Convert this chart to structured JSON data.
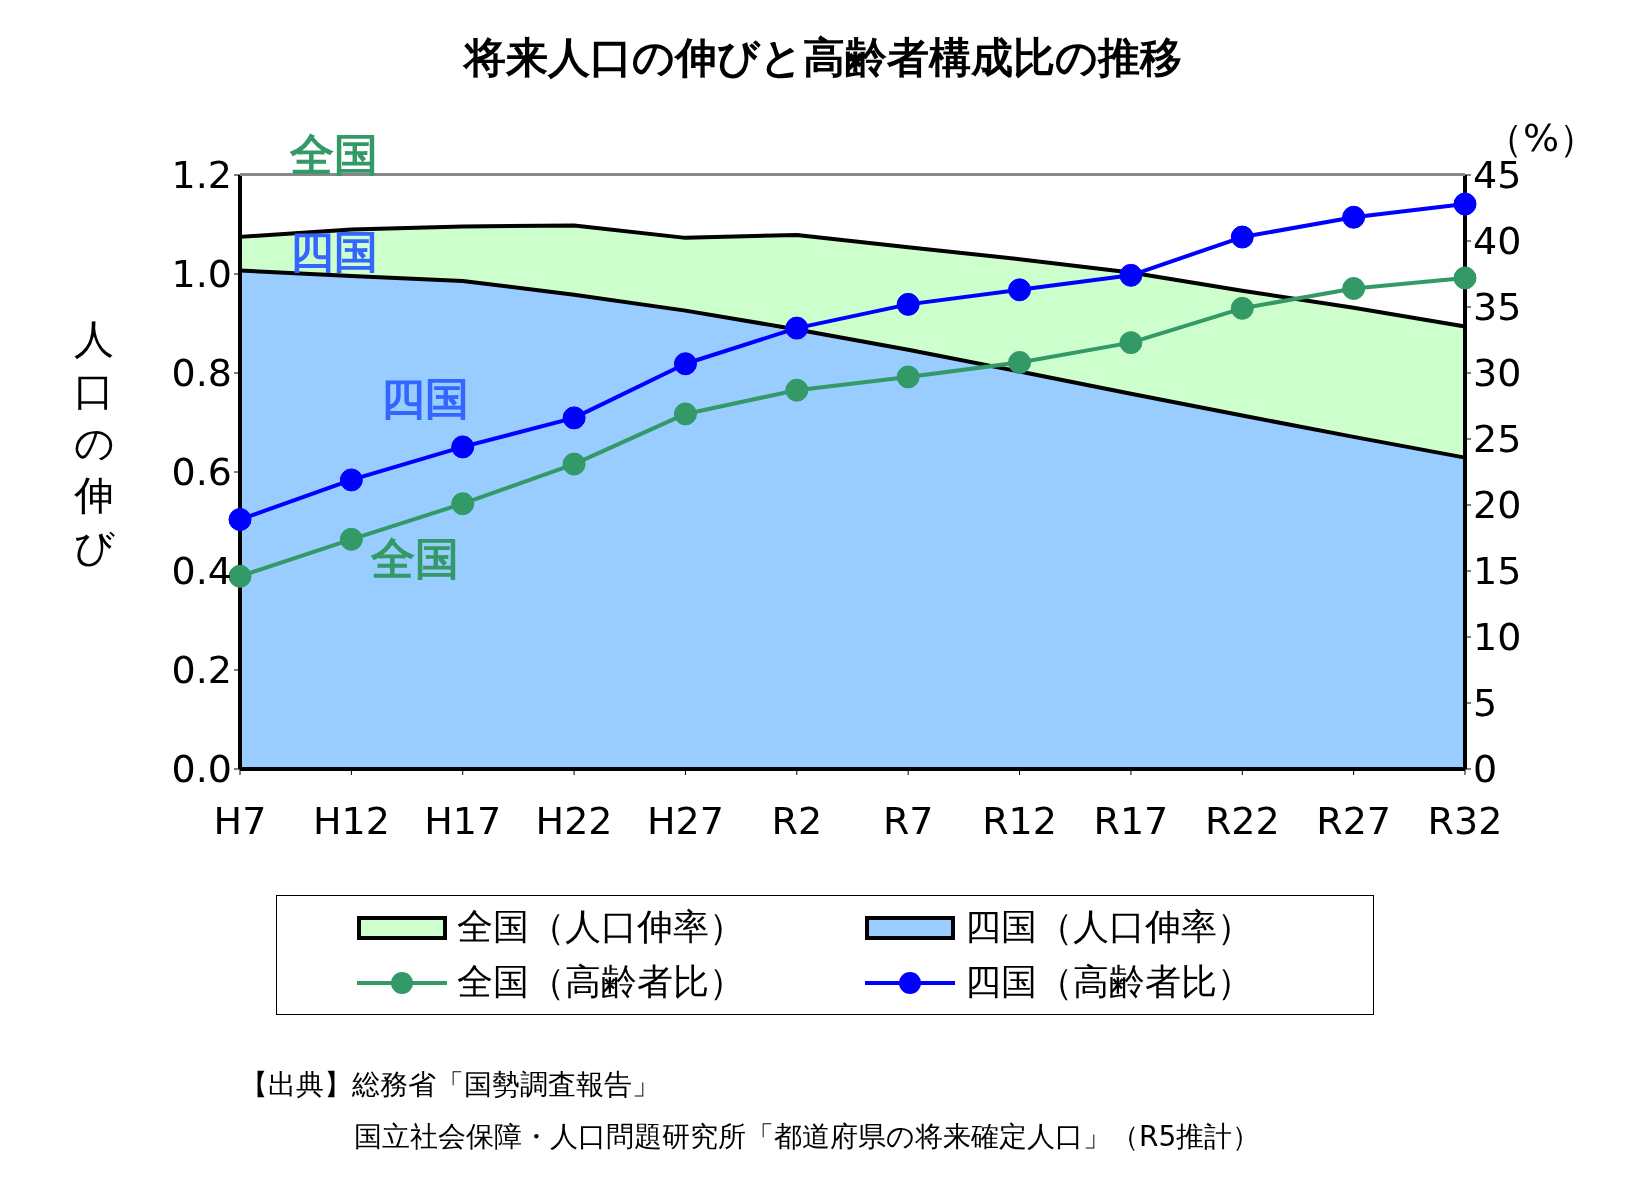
{
  "chart_data": {
    "type": "area",
    "title": "将来人口の伸びと高齢者構成比の推移",
    "ylabel": "人口の伸び",
    "y2label": "（%）",
    "categories": [
      "H7",
      "H12",
      "H17",
      "H22",
      "H27",
      "R2",
      "R7",
      "R12",
      "R17",
      "R22",
      "R27",
      "R32"
    ],
    "series": [
      {
        "name": "全国（人口伸率）",
        "marker": "none",
        "color": "#ccffcc",
        "values": [
          1.075,
          1.09,
          1.096,
          1.098,
          1.073,
          1.079,
          1.054,
          1.03,
          1.003,
          0.966,
          0.932,
          0.894
        ]
      },
      {
        "name": "四国（人口伸率）",
        "marker": "none",
        "color": "#99ccff",
        "values": [
          1.007,
          0.996,
          0.986,
          0.958,
          0.926,
          0.888,
          0.847,
          0.803,
          0.758,
          0.714,
          0.671,
          0.629
        ]
      },
      {
        "name": "全国（高齢者比）",
        "type": "line",
        "axis": "y2",
        "color": "#339966",
        "values": [
          14.6,
          17.4,
          20.1,
          23.1,
          26.9,
          28.7,
          29.7,
          30.8,
          32.3,
          34.9,
          36.4,
          37.2
        ]
      },
      {
        "name": "四国（高齢者比）",
        "type": "line",
        "axis": "y2",
        "color": "#0000ff",
        "values": [
          18.9,
          21.9,
          24.4,
          26.6,
          30.7,
          33.4,
          35.2,
          36.3,
          37.4,
          40.3,
          41.8,
          42.8
        ]
      }
    ],
    "ylim": [
      0,
      1.2
    ],
    "yticks": [
      {
        "value": 0,
        "label": "0.0"
      },
      {
        "value": 0.2,
        "label": "0.2"
      },
      {
        "value": 0.4,
        "label": "0.4"
      },
      {
        "value": 0.6,
        "label": "0.6"
      },
      {
        "value": 0.8,
        "label": "0.8"
      },
      {
        "value": 1,
        "label": "1.0"
      },
      {
        "value": 1.2,
        "label": "1.2"
      }
    ],
    "y2lim": [
      0,
      45
    ],
    "y2ticks": [
      0,
      5,
      10,
      15,
      20,
      25,
      30,
      35,
      40,
      45
    ],
    "marker": "circle",
    "line_style": "solid",
    "legend": "bottom",
    "annotations": [
      "全国",
      "四国",
      "四国",
      "全国",
      "【出典】総務省「国勢調査報告」",
      "国立社会保障・人口問題研究所「都道府県の将来確定人口」（R5推計）"
    ]
  }
}
